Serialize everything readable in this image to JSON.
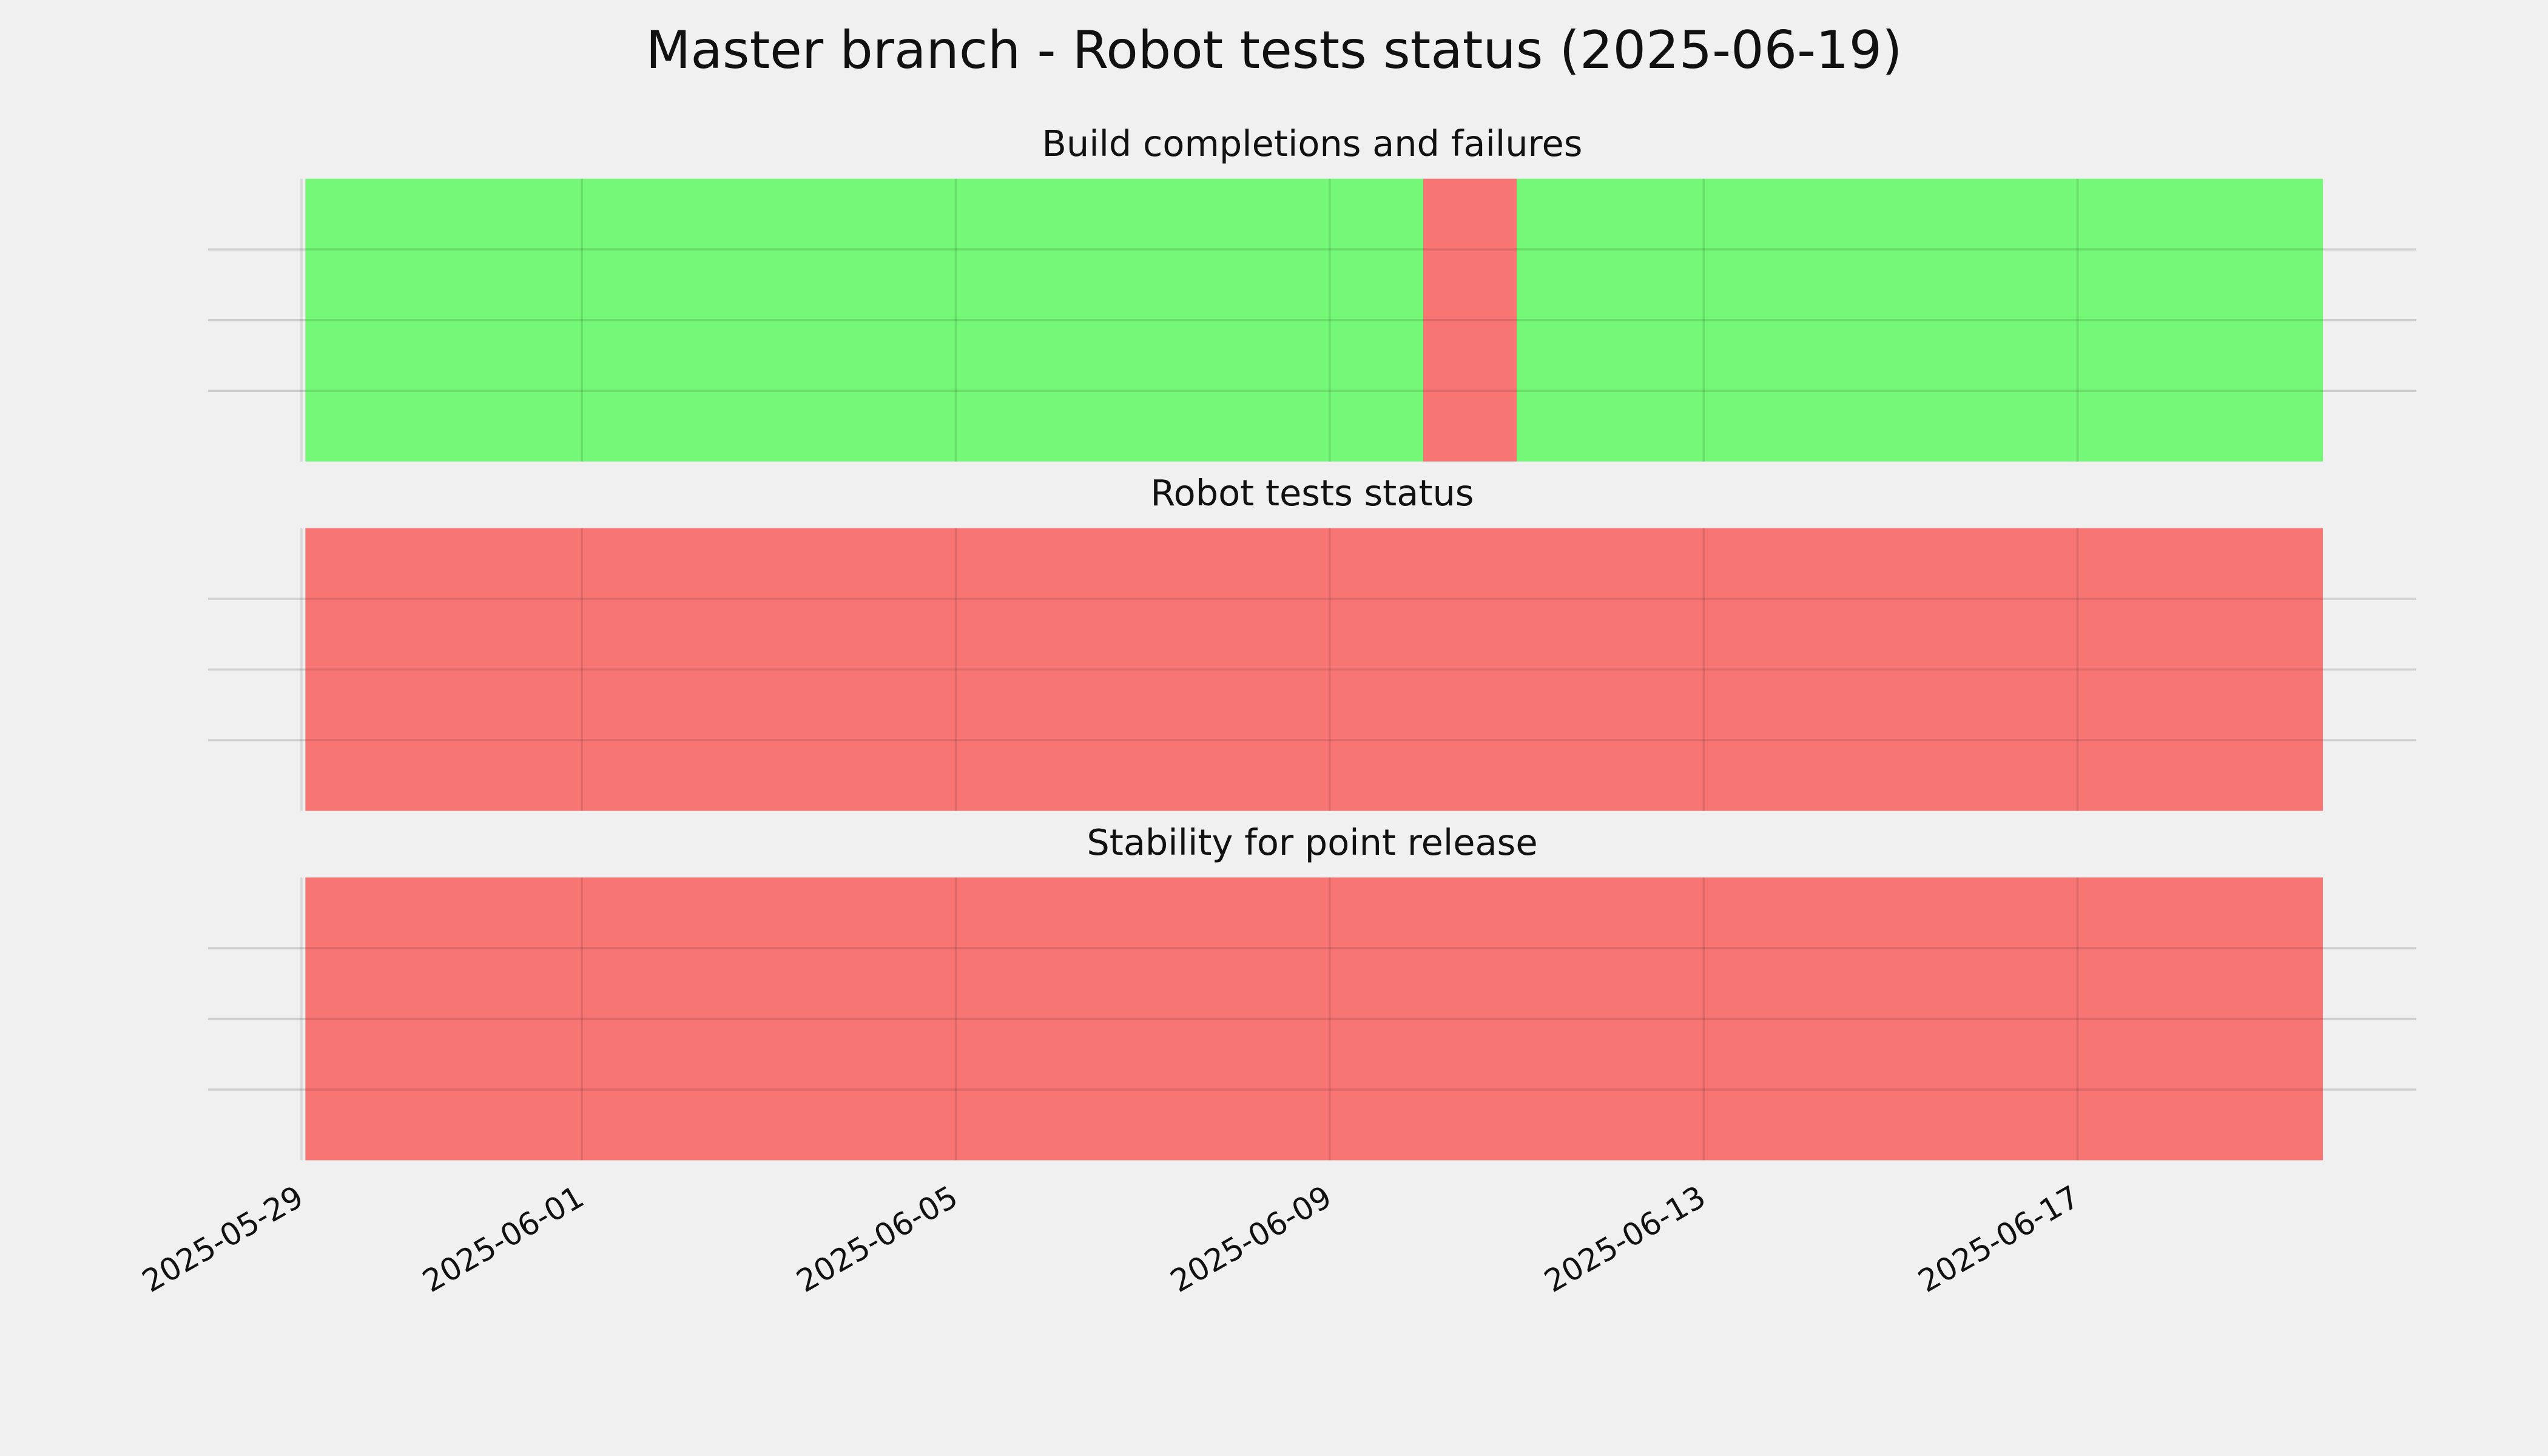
{
  "title": "Master branch - Robot tests status (2025-06-19)",
  "chart_data": [
    {
      "type": "timeline",
      "title": "Build completions and failures",
      "segments": [
        {
          "start": "2025-05-29T01:00",
          "end": "2025-06-10",
          "color": "#75f878"
        },
        {
          "start": "2025-06-10",
          "end": "2025-06-11",
          "color": "#f77674"
        },
        {
          "start": "2025-06-11",
          "end": "2025-06-19T15:00",
          "color": "#75f878"
        }
      ],
      "xlim": [
        "2025-05-28T00:00",
        "2025-06-20T15:00"
      ],
      "ylim": [
        0,
        1
      ],
      "yticks": [
        0.25,
        0.5,
        0.75
      ],
      "grid": true
    },
    {
      "type": "timeline",
      "title": "Robot tests status",
      "segments": [
        {
          "start": "2025-05-29T01:00",
          "end": "2025-06-19T15:00",
          "color": "#f77674"
        }
      ],
      "xlim": [
        "2025-05-28T00:00",
        "2025-06-20T15:00"
      ],
      "ylim": [
        0,
        1
      ],
      "yticks": [
        0.25,
        0.5,
        0.75
      ],
      "grid": true
    },
    {
      "type": "timeline",
      "title": "Stability for point release",
      "segments": [
        {
          "start": "2025-05-29T01:00",
          "end": "2025-06-19T15:00",
          "color": "#f77674"
        }
      ],
      "xlim": [
        "2025-05-28T00:00",
        "2025-06-20T15:00"
      ],
      "ylim": [
        0,
        1
      ],
      "yticks": [
        0.25,
        0.5,
        0.75
      ],
      "grid": true,
      "xticks": [
        "2025-05-29",
        "2025-06-01",
        "2025-06-05",
        "2025-06-09",
        "2025-06-13",
        "2025-06-17"
      ]
    }
  ]
}
